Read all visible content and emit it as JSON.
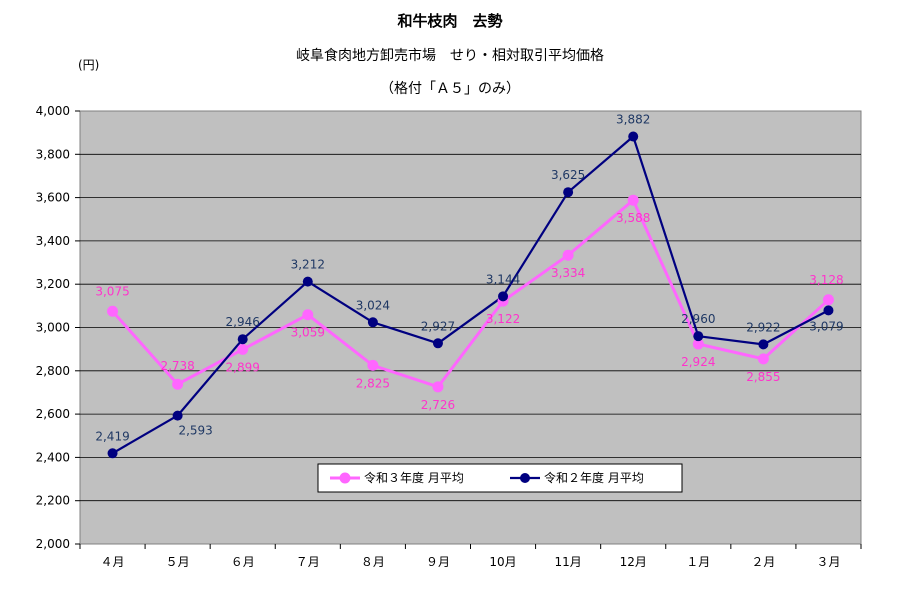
{
  "titles": {
    "line1": "和牛枝肉　去勢",
    "line2": "岐阜食肉地方卸売市場　せり・相対取引平均価格",
    "line3": "（格付「Ａ５」のみ）"
  },
  "colors": {
    "plot_bg": "#c0c0c0",
    "r3": "#ff66ff",
    "r2": "#000080",
    "label_r3": "#ff33cc",
    "label_r2": "#1f3864"
  },
  "chart_data": {
    "type": "line",
    "ylabel": "(円)",
    "ylim": [
      2000,
      4000
    ],
    "yticks": [
      "2,000",
      "2,200",
      "2,400",
      "2,600",
      "2,800",
      "3,000",
      "3,200",
      "3,400",
      "3,600",
      "3,800",
      "4,000"
    ],
    "categories": [
      "４月",
      "５月",
      "６月",
      "７月",
      "８月",
      "９月",
      "10月",
      "11月",
      "12月",
      "１月",
      "２月",
      "３月"
    ],
    "grid": true,
    "legend_position": "bottom-center",
    "series": [
      {
        "name": "令和３年度 月平均",
        "values": [
          3075,
          2738,
          2899,
          3059,
          2825,
          2726,
          3122,
          3334,
          3588,
          2924,
          2855,
          3128
        ],
        "labels": [
          "3,075",
          "2,738",
          "2,899",
          "3,059",
          "2,825",
          "2,726",
          "3,122",
          "3,334",
          "3,588",
          "2,924",
          "2,855",
          "3,128"
        ]
      },
      {
        "name": "令和２年度 月平均",
        "values": [
          2419,
          2593,
          2946,
          3212,
          3024,
          2927,
          3144,
          3625,
          3882,
          2960,
          2922,
          3079
        ],
        "labels": [
          "2,419",
          "2,593",
          "2,946",
          "3,212",
          "3,024",
          "2,927",
          "3,144",
          "3,625",
          "3,882",
          "2,960",
          "2,922",
          "3,079"
        ]
      }
    ]
  }
}
